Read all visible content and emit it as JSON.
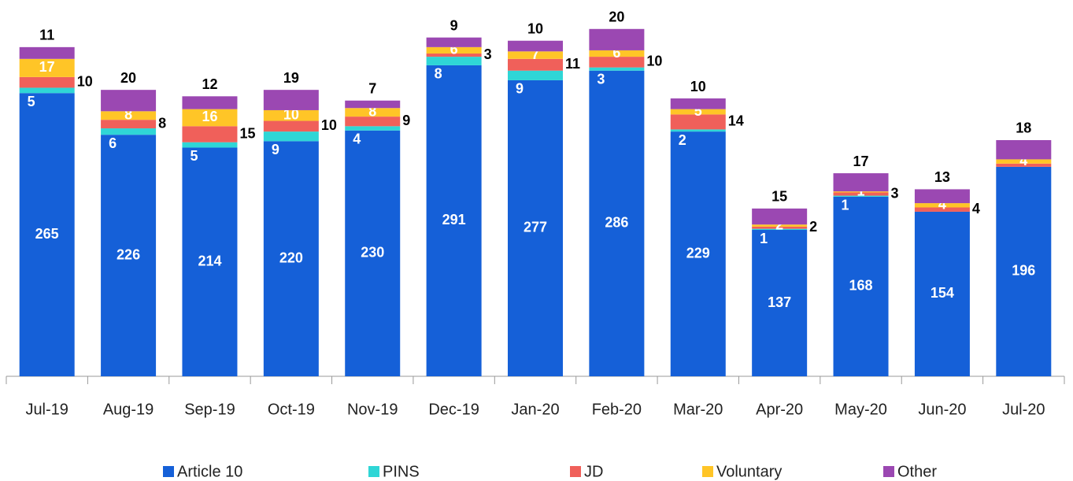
{
  "chart_data": {
    "type": "stacked_bar",
    "categories": [
      "Jul-19",
      "Aug-19",
      "Sep-19",
      "Oct-19",
      "Nov-19",
      "Dec-19",
      "Jan-20",
      "Feb-20",
      "Mar-20",
      "Apr-20",
      "May-20",
      "Jun-20",
      "Jul-20"
    ],
    "series": [
      {
        "name": "Article 10",
        "color": "#1560d8",
        "values": [
          265,
          226,
          214,
          220,
          230,
          291,
          277,
          286,
          229,
          137,
          168,
          154,
          196
        ]
      },
      {
        "name": "PINS",
        "color": "#2fd6d6",
        "values": [
          5,
          6,
          5,
          9,
          4,
          8,
          9,
          3,
          2,
          1,
          1,
          0,
          0
        ],
        "value_labels": [
          "5",
          "6",
          "5",
          "9",
          "4",
          "8",
          "9",
          "3",
          "2",
          "1",
          "1",
          null,
          null
        ]
      },
      {
        "name": "JD",
        "color": "#f0605a",
        "values": [
          10,
          8,
          15,
          10,
          9,
          3,
          11,
          10,
          14,
          2,
          3,
          4,
          3
        ],
        "value_labels": [
          "10",
          "8",
          "15",
          "10",
          "9",
          "3",
          "11",
          "10",
          "14",
          "2",
          "3",
          "4",
          null
        ]
      },
      {
        "name": "Voluntary",
        "color": "#ffc527",
        "values": [
          17,
          8,
          16,
          10,
          8,
          6,
          7,
          6,
          5,
          2,
          1,
          4,
          4
        ]
      },
      {
        "name": "Other",
        "color": "#9b48b2",
        "values": [
          11,
          20,
          12,
          19,
          7,
          9,
          10,
          20,
          10,
          15,
          17,
          13,
          18
        ]
      }
    ],
    "ylim": [
      0,
      330
    ]
  }
}
